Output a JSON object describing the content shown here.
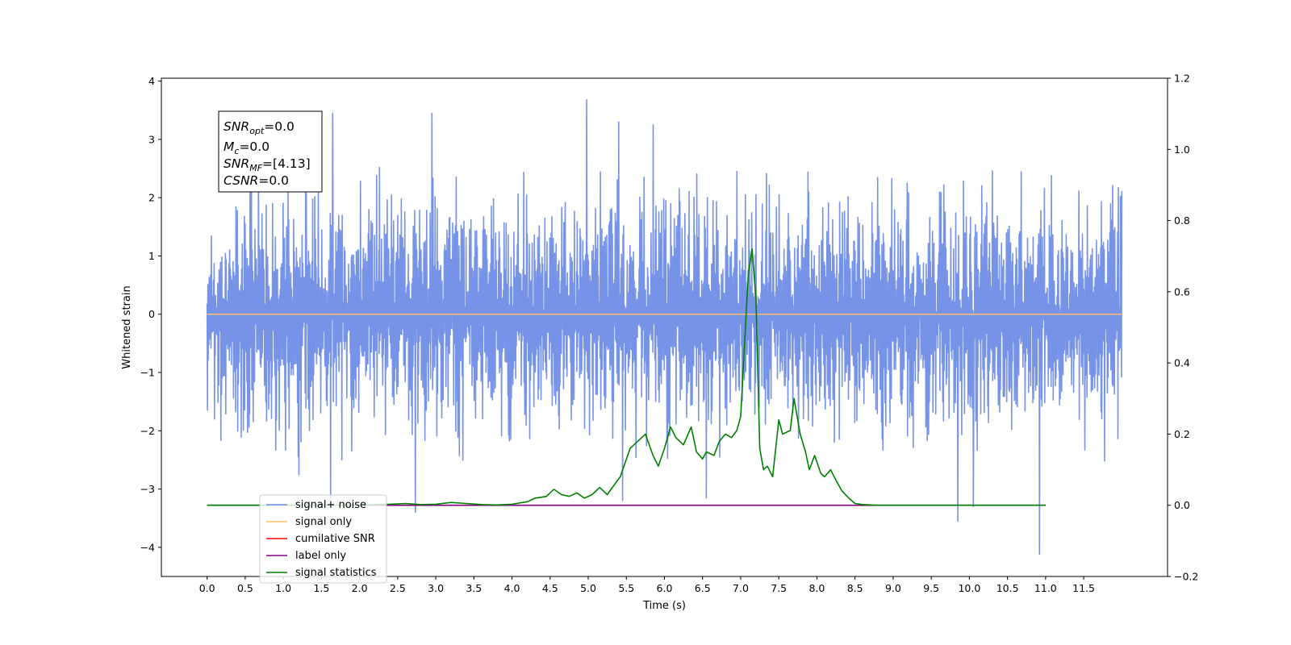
{
  "chart_data": {
    "type": "line",
    "xlabel": "Time (s)",
    "ylabel": "Whitened strain",
    "ylabel_right": "",
    "xlim": [
      -0.6,
      12.6
    ],
    "ylim_left": [
      -4.5,
      4.05
    ],
    "ylim_right": [
      -0.2,
      1.2
    ],
    "x_ticks": [
      0.0,
      0.5,
      1.0,
      1.5,
      2.0,
      2.5,
      3.0,
      3.5,
      4.0,
      4.5,
      5.0,
      5.5,
      6.0,
      6.5,
      7.0,
      7.5,
      8.0,
      8.5,
      9.0,
      9.5,
      10.0,
      10.5,
      11.0,
      11.5
    ],
    "x_tick_labels": [
      "0.0",
      "0.5",
      "1.0",
      "1.5",
      "2.0",
      "2.5",
      "3.0",
      "3.5",
      "4.0",
      "4.5",
      "5.0",
      "5.5",
      "6.0",
      "6.5",
      "7.0",
      "7.5",
      "8.0",
      "8.5",
      "9.0",
      "9.5",
      "10.0",
      "10.5",
      "11.0",
      "11.5"
    ],
    "y_ticks_left": [
      -4,
      -3,
      -2,
      -1,
      0,
      1,
      2,
      3,
      4
    ],
    "y_tick_labels_left": [
      "−4",
      "−3",
      "−2",
      "−1",
      "0",
      "1",
      "2",
      "3",
      "4"
    ],
    "y_ticks_right": [
      -0.2,
      0.0,
      0.2,
      0.4,
      0.6,
      0.8,
      1.0,
      1.2
    ],
    "y_tick_labels_right": [
      "−0.2",
      "0.0",
      "0.2",
      "0.4",
      "0.6",
      "0.8",
      "1.0",
      "1.2"
    ],
    "grid": false,
    "legend_position": "lower-left",
    "annotation": {
      "lines": [
        {
          "main": "SNR",
          "sub": "opt",
          "rest": "=0.0"
        },
        {
          "main": "M",
          "sub": "c",
          "rest": "=0.0"
        },
        {
          "main": "SNR",
          "sub": "MF",
          "rest": "=[4.13]"
        },
        {
          "main": "CSNR",
          "sub": "",
          "rest": "=0.0"
        }
      ]
    },
    "noise_envelope": {
      "x_range": [
        0.0,
        12.0
      ],
      "typical_range": [
        -2.0,
        2.0
      ],
      "peaks": [
        {
          "x": 1.65,
          "y": 3.45
        },
        {
          "x": 2.95,
          "y": 3.45
        },
        {
          "x": 4.98,
          "y": 3.68
        },
        {
          "x": 5.4,
          "y": 3.3
        },
        {
          "x": 5.85,
          "y": 3.25
        },
        {
          "x": 6.55,
          "y": 3.3
        },
        {
          "x": 9.85,
          "y": -3.55
        },
        {
          "x": 10.05,
          "y": -3.3
        },
        {
          "x": 10.92,
          "y": -4.12
        },
        {
          "x": 2.73,
          "y": -3.4
        },
        {
          "x": 5.45,
          "y": -3.2
        },
        {
          "x": 6.55,
          "y": -3.15
        },
        {
          "x": 1.62,
          "y": -3.25
        }
      ]
    },
    "series": [
      {
        "name": "signal+ noise",
        "axis": "left",
        "color": "#6f8de6",
        "x_range": [
          0.0,
          12.0
        ]
      },
      {
        "name": "signal only",
        "axis": "left",
        "color": "#ffbf66",
        "x": [
          0.0,
          12.0
        ],
        "values": [
          0.0,
          0.0
        ]
      },
      {
        "name": "cumilative SNR",
        "axis": "right",
        "color": "#ff0000",
        "x": [
          0.0,
          11.0
        ],
        "values": [
          0.0,
          0.0
        ]
      },
      {
        "name": "label only",
        "axis": "right",
        "color": "#800080",
        "x": [
          0.0,
          11.0
        ],
        "values": [
          0.0,
          0.0
        ]
      },
      {
        "name": "signal statistics",
        "axis": "right",
        "color": "#008000",
        "x": [
          0.0,
          2.0,
          2.2,
          2.4,
          2.6,
          2.8,
          3.0,
          3.2,
          3.4,
          3.6,
          3.8,
          4.0,
          4.2,
          4.3,
          4.45,
          4.55,
          4.65,
          4.75,
          4.85,
          4.95,
          5.05,
          5.15,
          5.25,
          5.35,
          5.42,
          5.55,
          5.65,
          5.75,
          5.85,
          5.92,
          6.0,
          6.08,
          6.15,
          6.25,
          6.35,
          6.42,
          6.5,
          6.55,
          6.65,
          6.72,
          6.8,
          6.88,
          6.95,
          7.0,
          7.05,
          7.1,
          7.15,
          7.2,
          7.25,
          7.3,
          7.35,
          7.42,
          7.5,
          7.55,
          7.65,
          7.7,
          7.78,
          7.85,
          7.9,
          7.97,
          8.05,
          8.1,
          8.18,
          8.25,
          8.33,
          8.42,
          8.5,
          8.6,
          8.8,
          9.2,
          10.0,
          11.0
        ],
        "values": [
          0.0,
          0.0,
          0.002,
          0.003,
          0.005,
          0.002,
          0.003,
          0.008,
          0.005,
          0.002,
          0.001,
          0.003,
          0.01,
          0.02,
          0.025,
          0.045,
          0.03,
          0.025,
          0.035,
          0.02,
          0.03,
          0.05,
          0.03,
          0.06,
          0.08,
          0.16,
          0.18,
          0.2,
          0.14,
          0.11,
          0.16,
          0.22,
          0.19,
          0.17,
          0.22,
          0.15,
          0.13,
          0.15,
          0.14,
          0.18,
          0.2,
          0.19,
          0.21,
          0.25,
          0.45,
          0.65,
          0.72,
          0.58,
          0.16,
          0.1,
          0.11,
          0.08,
          0.24,
          0.2,
          0.21,
          0.3,
          0.2,
          0.15,
          0.1,
          0.14,
          0.09,
          0.08,
          0.1,
          0.07,
          0.04,
          0.02,
          0.005,
          0.002,
          0.0,
          0.0,
          0.0,
          0.0
        ]
      }
    ]
  }
}
